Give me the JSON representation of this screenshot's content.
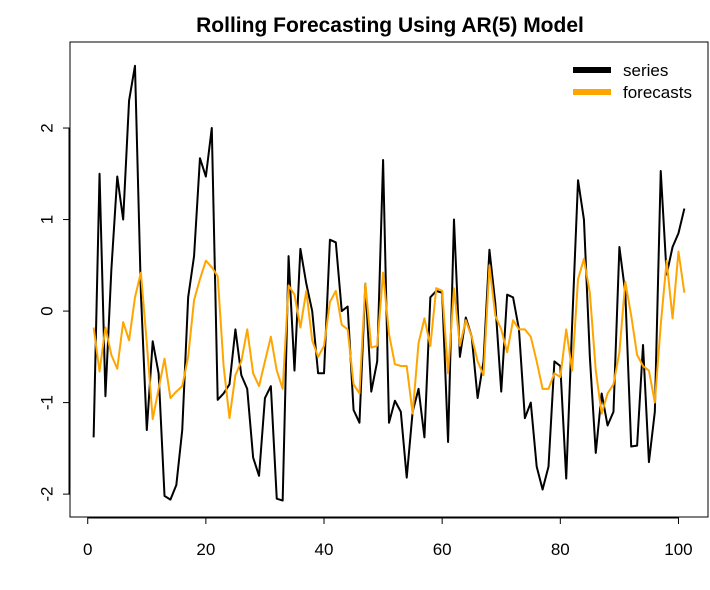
{
  "chart_data": {
    "type": "line",
    "title": "Rolling Forecasting Using AR(5) Model",
    "x": [
      1,
      2,
      3,
      4,
      5,
      6,
      7,
      8,
      9,
      10,
      11,
      12,
      13,
      14,
      15,
      16,
      17,
      18,
      19,
      20,
      21,
      22,
      23,
      24,
      25,
      26,
      27,
      28,
      29,
      30,
      31,
      32,
      33,
      34,
      35,
      36,
      37,
      38,
      39,
      40,
      41,
      42,
      43,
      44,
      45,
      46,
      47,
      48,
      49,
      50,
      51,
      52,
      53,
      54,
      55,
      56,
      57,
      58,
      59,
      60,
      61,
      62,
      63,
      64,
      65,
      66,
      67,
      68,
      69,
      70,
      71,
      72,
      73,
      74,
      75,
      76,
      77,
      78,
      79,
      80,
      81,
      82,
      83,
      84,
      85,
      86,
      87,
      88,
      89,
      90,
      91,
      92,
      93,
      94,
      95,
      96,
      97,
      98,
      99,
      100,
      101
    ],
    "series": [
      {
        "name": "series",
        "color": "#000000",
        "values": [
          -1.38,
          1.5,
          -0.93,
          0.45,
          1.47,
          1.0,
          2.3,
          2.68,
          0.2,
          -1.3,
          -0.33,
          -0.68,
          -2.02,
          -2.06,
          -1.9,
          -1.3,
          0.15,
          0.6,
          1.67,
          1.47,
          2.0,
          -0.97,
          -0.9,
          -0.8,
          -0.2,
          -0.7,
          -0.85,
          -1.6,
          -1.8,
          -0.95,
          -0.82,
          -2.05,
          -2.07,
          0.6,
          -0.65,
          0.68,
          0.3,
          0.0,
          -0.68,
          -0.68,
          0.78,
          0.75,
          0.0,
          0.05,
          -1.08,
          -1.22,
          0.3,
          -0.88,
          -0.55,
          1.65,
          -1.22,
          -0.98,
          -1.1,
          -1.82,
          -1.1,
          -0.85,
          -1.38,
          0.15,
          0.22,
          0.2,
          -1.43,
          1.0,
          -0.5,
          -0.07,
          -0.28,
          -0.95,
          -0.55,
          0.67,
          0.08,
          -0.88,
          0.18,
          0.15,
          -0.2,
          -1.17,
          -1.0,
          -1.7,
          -1.95,
          -1.7,
          -0.55,
          -0.6,
          -1.83,
          -0.15,
          1.43,
          1.0,
          -0.5,
          -1.55,
          -0.9,
          -1.25,
          -1.1,
          0.7,
          0.2,
          -1.48,
          -1.47,
          -0.37,
          -1.65,
          -1.1,
          1.53,
          0.4,
          0.7,
          0.85,
          1.12
        ]
      },
      {
        "name": "forecasts",
        "color": "#ffa500",
        "values": [
          -0.18,
          -0.66,
          -0.18,
          -0.48,
          -0.63,
          -0.12,
          -0.32,
          0.15,
          0.42,
          -0.35,
          -1.18,
          -0.85,
          -0.52,
          -0.95,
          -0.88,
          -0.82,
          -0.5,
          0.12,
          0.35,
          0.55,
          0.48,
          0.38,
          -0.6,
          -1.17,
          -0.7,
          -0.55,
          -0.2,
          -0.68,
          -0.82,
          -0.55,
          -0.28,
          -0.65,
          -0.85,
          0.28,
          0.18,
          -0.18,
          0.22,
          -0.32,
          -0.5,
          -0.38,
          0.1,
          0.22,
          -0.15,
          -0.2,
          -0.8,
          -0.9,
          0.3,
          -0.4,
          -0.38,
          0.42,
          -0.25,
          -0.58,
          -0.6,
          -0.6,
          -1.12,
          -0.35,
          -0.08,
          -0.38,
          0.25,
          0.22,
          -0.68,
          0.25,
          -0.38,
          -0.1,
          -0.28,
          -0.55,
          -0.7,
          0.5,
          -0.05,
          -0.2,
          -0.45,
          -0.1,
          -0.2,
          -0.2,
          -0.28,
          -0.55,
          -0.85,
          -0.85,
          -0.68,
          -0.72,
          -0.2,
          -0.65,
          0.35,
          0.57,
          0.2,
          -0.65,
          -1.12,
          -0.9,
          -0.8,
          -0.45,
          0.32,
          -0.05,
          -0.48,
          -0.6,
          -0.65,
          -1.0,
          -0.15,
          0.55,
          -0.08,
          0.65,
          0.2
        ]
      }
    ],
    "xlim": [
      -3,
      105
    ],
    "ylim": [
      -2.25,
      2.94
    ],
    "xticks": [
      0,
      20,
      40,
      60,
      80,
      100
    ],
    "yticks": [
      -2,
      -1,
      0,
      1,
      2
    ],
    "legend": "topright"
  }
}
